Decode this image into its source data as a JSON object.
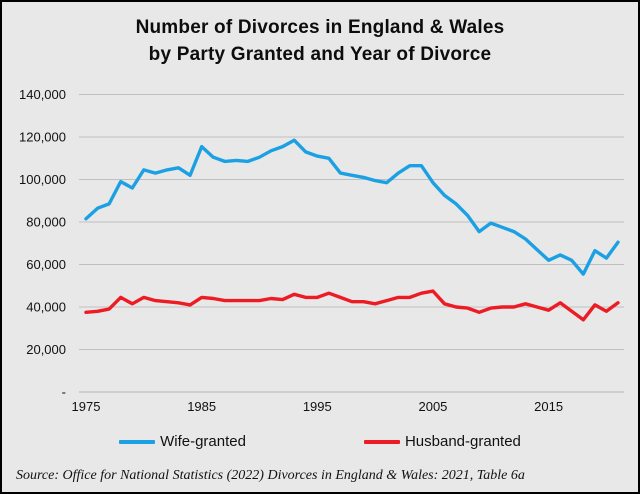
{
  "frame": {
    "title_line1": "Number of Divorces in England & Wales",
    "title_line2": "by Party Granted and Year of Divorce",
    "source": "Source:  Office for National Statistics (2022) Divorces in England & Wales: 2021, Table 6a"
  },
  "legend": {
    "items": [
      {
        "label": "Wife-granted",
        "color": "#1ba1e3"
      },
      {
        "label": "Husband-granted",
        "color": "#ed1c24"
      }
    ]
  },
  "chart_data": {
    "type": "line",
    "title": "Number of Divorces in England & Wales by Party Granted and Year of Divorce",
    "xlabel": "",
    "ylabel": "",
    "ylim": [
      0,
      140000
    ],
    "grid": "horizontal",
    "legend_position": "bottom",
    "x": [
      1975,
      1976,
      1977,
      1978,
      1979,
      1980,
      1981,
      1982,
      1983,
      1984,
      1985,
      1986,
      1987,
      1988,
      1989,
      1990,
      1991,
      1992,
      1993,
      1994,
      1995,
      1996,
      1997,
      1998,
      1999,
      2000,
      2001,
      2002,
      2003,
      2004,
      2005,
      2006,
      2007,
      2008,
      2009,
      2010,
      2011,
      2012,
      2013,
      2014,
      2015,
      2016,
      2017,
      2018,
      2019,
      2020,
      2021
    ],
    "xticks": [
      1975,
      1985,
      1995,
      2005,
      2015
    ],
    "yticks": [
      {
        "value": 0,
        "label": "-"
      },
      {
        "value": 20000,
        "label": "20,000"
      },
      {
        "value": 40000,
        "label": "40,000"
      },
      {
        "value": 60000,
        "label": "60,000"
      },
      {
        "value": 80000,
        "label": "80,000"
      },
      {
        "value": 100000,
        "label": "100,000"
      },
      {
        "value": 120000,
        "label": "120,000"
      },
      {
        "value": 140000,
        "label": "140,000"
      }
    ],
    "series": [
      {
        "name": "Wife-granted",
        "color": "#1ba1e3",
        "values": [
          81500,
          86500,
          88500,
          99000,
          96000,
          104500,
          103000,
          104500,
          105500,
          102000,
          115500,
          110500,
          108500,
          109000,
          108500,
          110500,
          113500,
          115500,
          118500,
          113000,
          111000,
          110000,
          103000,
          102000,
          101000,
          99500,
          98500,
          103000,
          106500,
          106500,
          98500,
          92500,
          88500,
          83000,
          75500,
          79500,
          77500,
          75500,
          72000,
          67000,
          62000,
          64500,
          62000,
          55500,
          66500,
          63000,
          70500
        ]
      },
      {
        "name": "Husband-granted",
        "color": "#ed1c24",
        "values": [
          37500,
          38000,
          39000,
          44500,
          41500,
          44500,
          43000,
          42500,
          42000,
          41000,
          44500,
          44000,
          43000,
          43000,
          43000,
          43000,
          44000,
          43500,
          46000,
          44500,
          44500,
          46500,
          44500,
          42500,
          42500,
          41500,
          43000,
          44500,
          44500,
          46500,
          47500,
          41500,
          40000,
          39500,
          37500,
          39500,
          40000,
          40000,
          41500,
          40000,
          38500,
          42000,
          38000,
          34000,
          41000,
          38000,
          42000
        ]
      }
    ]
  }
}
